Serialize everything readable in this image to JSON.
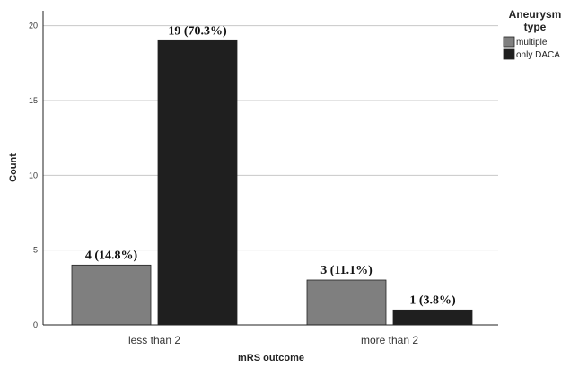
{
  "chart_data": {
    "type": "bar",
    "categories": [
      "less than 2",
      "more than 2"
    ],
    "series": [
      {
        "name": "multiple",
        "values": [
          4,
          3
        ],
        "labels": [
          "4 (14.8%)",
          "3 (11.1%)"
        ],
        "color": "#7f7f7f"
      },
      {
        "name": "only DACA",
        "values": [
          19,
          1
        ],
        "labels": [
          "19 (70.3%)",
          "1 (3.8%)"
        ],
        "color": "#1f1f1f"
      }
    ],
    "xlabel": "mRS outcome",
    "ylabel": "Count",
    "ylim": [
      0,
      21
    ],
    "yticks": [
      0,
      5,
      10,
      15,
      20
    ],
    "grid": true,
    "legend": {
      "title_line1": "Aneurysm",
      "title_line2": "type",
      "placement": "top-right"
    }
  }
}
